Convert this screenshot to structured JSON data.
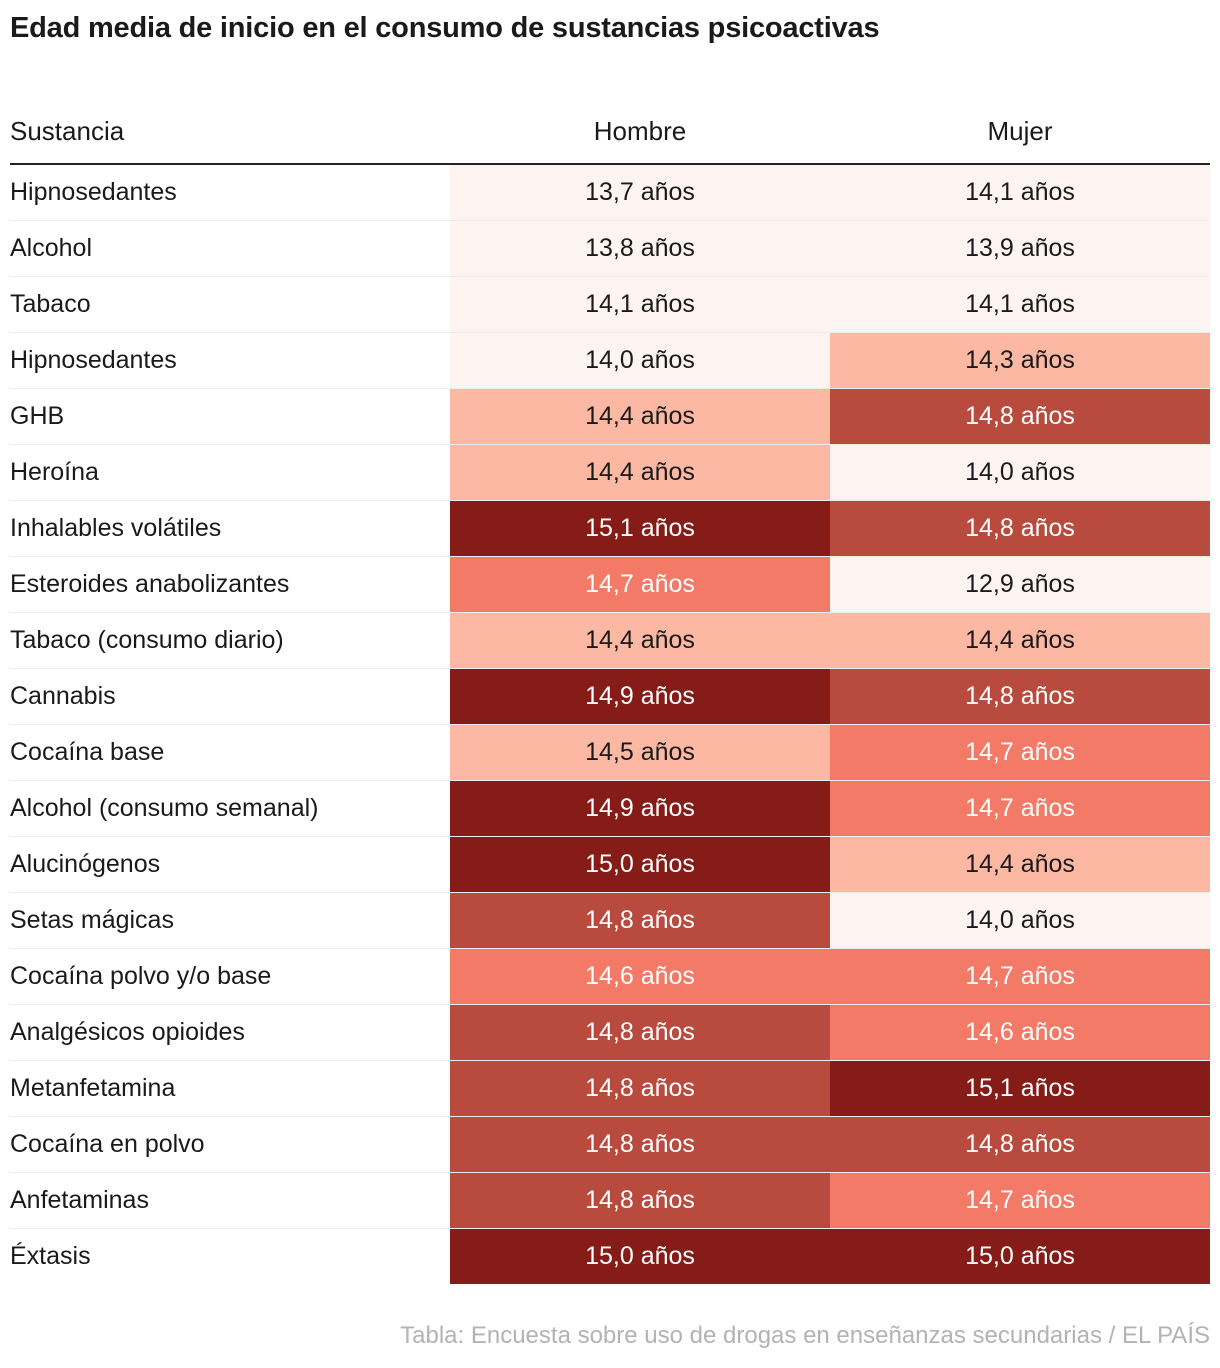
{
  "title": "Edad media de inicio en el consumo de sustancias psicoactivas",
  "source": "Tabla: Encuesta sobre uso de drogas en enseñanzas secundarias / EL PAÍS",
  "unit_suffix": " años",
  "palette": {
    "scale": [
      "#fdf3f0",
      "#fcb8a2",
      "#f27a66",
      "#b84b3e",
      "#861c17"
    ],
    "text_light": "#ffffff",
    "text_dark": "#1a1a1a"
  },
  "chart_data": {
    "type": "table",
    "title": "Edad media de inicio en el consumo de sustancias psicoactivas",
    "columns": [
      "Sustancia",
      "Hombre",
      "Mujer"
    ],
    "rows": [
      {
        "sustancia": "Hipnosedantes",
        "hombre": "13,7",
        "mujer": "14,1",
        "hombre_level": 0,
        "mujer_level": 0
      },
      {
        "sustancia": "Alcohol",
        "hombre": "13,8",
        "mujer": "13,9",
        "hombre_level": 0,
        "mujer_level": 0
      },
      {
        "sustancia": "Tabaco",
        "hombre": "14,1",
        "mujer": "14,1",
        "hombre_level": 0,
        "mujer_level": 0
      },
      {
        "sustancia": "Hipnosedantes",
        "hombre": "14,0",
        "mujer": "14,3",
        "hombre_level": 0,
        "mujer_level": 1
      },
      {
        "sustancia": "GHB",
        "hombre": "14,4",
        "mujer": "14,8",
        "hombre_level": 1,
        "mujer_level": 3
      },
      {
        "sustancia": "Heroína",
        "hombre": "14,4",
        "mujer": "14,0",
        "hombre_level": 1,
        "mujer_level": 0
      },
      {
        "sustancia": "Inhalables volátiles",
        "hombre": "15,1",
        "mujer": "14,8",
        "hombre_level": 4,
        "mujer_level": 3
      },
      {
        "sustancia": "Esteroides anabolizantes",
        "hombre": "14,7",
        "mujer": "12,9",
        "hombre_level": 2,
        "mujer_level": 0
      },
      {
        "sustancia": "Tabaco (consumo diario)",
        "hombre": "14,4",
        "mujer": "14,4",
        "hombre_level": 1,
        "mujer_level": 1
      },
      {
        "sustancia": "Cannabis",
        "hombre": "14,9",
        "mujer": "14,8",
        "hombre_level": 4,
        "mujer_level": 3
      },
      {
        "sustancia": "Cocaína base",
        "hombre": "14,5",
        "mujer": "14,7",
        "hombre_level": 1,
        "mujer_level": 2
      },
      {
        "sustancia": "Alcohol (consumo semanal)",
        "hombre": "14,9",
        "mujer": "14,7",
        "hombre_level": 4,
        "mujer_level": 2
      },
      {
        "sustancia": "Alucinógenos",
        "hombre": "15,0",
        "mujer": "14,4",
        "hombre_level": 4,
        "mujer_level": 1
      },
      {
        "sustancia": "Setas mágicas",
        "hombre": "14,8",
        "mujer": "14,0",
        "hombre_level": 3,
        "mujer_level": 0
      },
      {
        "sustancia": "Cocaína polvo y/o base",
        "hombre": "14,6",
        "mujer": "14,7",
        "hombre_level": 2,
        "mujer_level": 2
      },
      {
        "sustancia": "Analgésicos opioides",
        "hombre": "14,8",
        "mujer": "14,6",
        "hombre_level": 3,
        "mujer_level": 2
      },
      {
        "sustancia": "Metanfetamina",
        "hombre": "14,8",
        "mujer": "15,1",
        "hombre_level": 3,
        "mujer_level": 4
      },
      {
        "sustancia": "Cocaína en polvo",
        "hombre": "14,8",
        "mujer": "14,8",
        "hombre_level": 3,
        "mujer_level": 3
      },
      {
        "sustancia": "Anfetaminas",
        "hombre": "14,8",
        "mujer": "14,7",
        "hombre_level": 3,
        "mujer_level": 2
      },
      {
        "sustancia": "Éxtasis",
        "hombre": "15,0",
        "mujer": "15,0",
        "hombre_level": 4,
        "mujer_level": 4
      }
    ]
  }
}
